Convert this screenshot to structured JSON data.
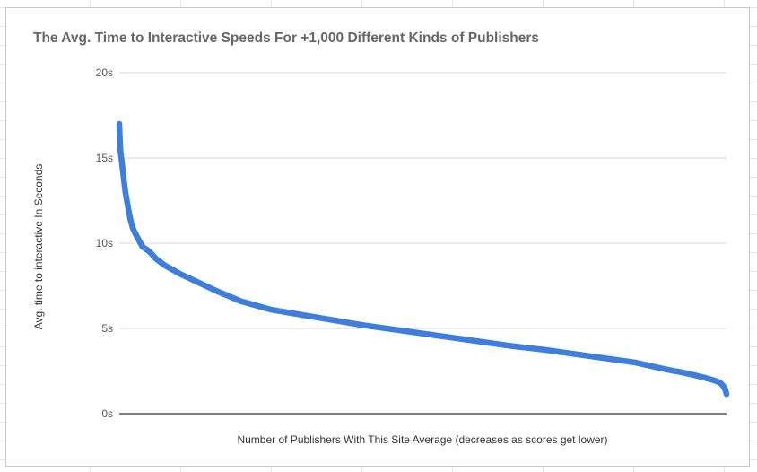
{
  "chart_data": {
    "type": "scatter",
    "title": "The Avg. Time to Interactive Speeds For +1,000 Different Kinds of Publishers",
    "xlabel": "Number of Publishers With This Site Average (decreases as scores get lower)",
    "ylabel": "Avg. time to interactive In Seconds",
    "ylim": [
      0,
      20
    ],
    "xlim": [
      0,
      1000
    ],
    "y_ticks": [
      "0s",
      "5s",
      "10s",
      "15s",
      "20s"
    ],
    "y_tick_values": [
      0,
      5,
      10,
      15,
      20
    ],
    "grid": true,
    "series": [
      {
        "name": "Avg. time to interactive",
        "color": "#3f7fdb",
        "points": [
          [
            0,
            17.0
          ],
          [
            1,
            16.0
          ],
          [
            2,
            15.4
          ],
          [
            4,
            14.8
          ],
          [
            6,
            14.2
          ],
          [
            8,
            13.6
          ],
          [
            10,
            13.0
          ],
          [
            13,
            12.4
          ],
          [
            16,
            11.8
          ],
          [
            19,
            11.3
          ],
          [
            22,
            10.9
          ],
          [
            26,
            10.6
          ],
          [
            32,
            10.2
          ],
          [
            38,
            9.8
          ],
          [
            50,
            9.5
          ],
          [
            60,
            9.1
          ],
          [
            75,
            8.7
          ],
          [
            100,
            8.2
          ],
          [
            130,
            7.7
          ],
          [
            160,
            7.2
          ],
          [
            200,
            6.6
          ],
          [
            250,
            6.1
          ],
          [
            300,
            5.8
          ],
          [
            350,
            5.5
          ],
          [
            400,
            5.2
          ],
          [
            450,
            4.95
          ],
          [
            500,
            4.7
          ],
          [
            550,
            4.45
          ],
          [
            600,
            4.2
          ],
          [
            650,
            3.95
          ],
          [
            700,
            3.75
          ],
          [
            750,
            3.5
          ],
          [
            800,
            3.25
          ],
          [
            850,
            3.0
          ],
          [
            900,
            2.6
          ],
          [
            930,
            2.4
          ],
          [
            960,
            2.15
          ],
          [
            980,
            1.95
          ],
          [
            990,
            1.8
          ],
          [
            995,
            1.6
          ],
          [
            998,
            1.4
          ],
          [
            1000,
            1.15
          ]
        ]
      }
    ]
  }
}
